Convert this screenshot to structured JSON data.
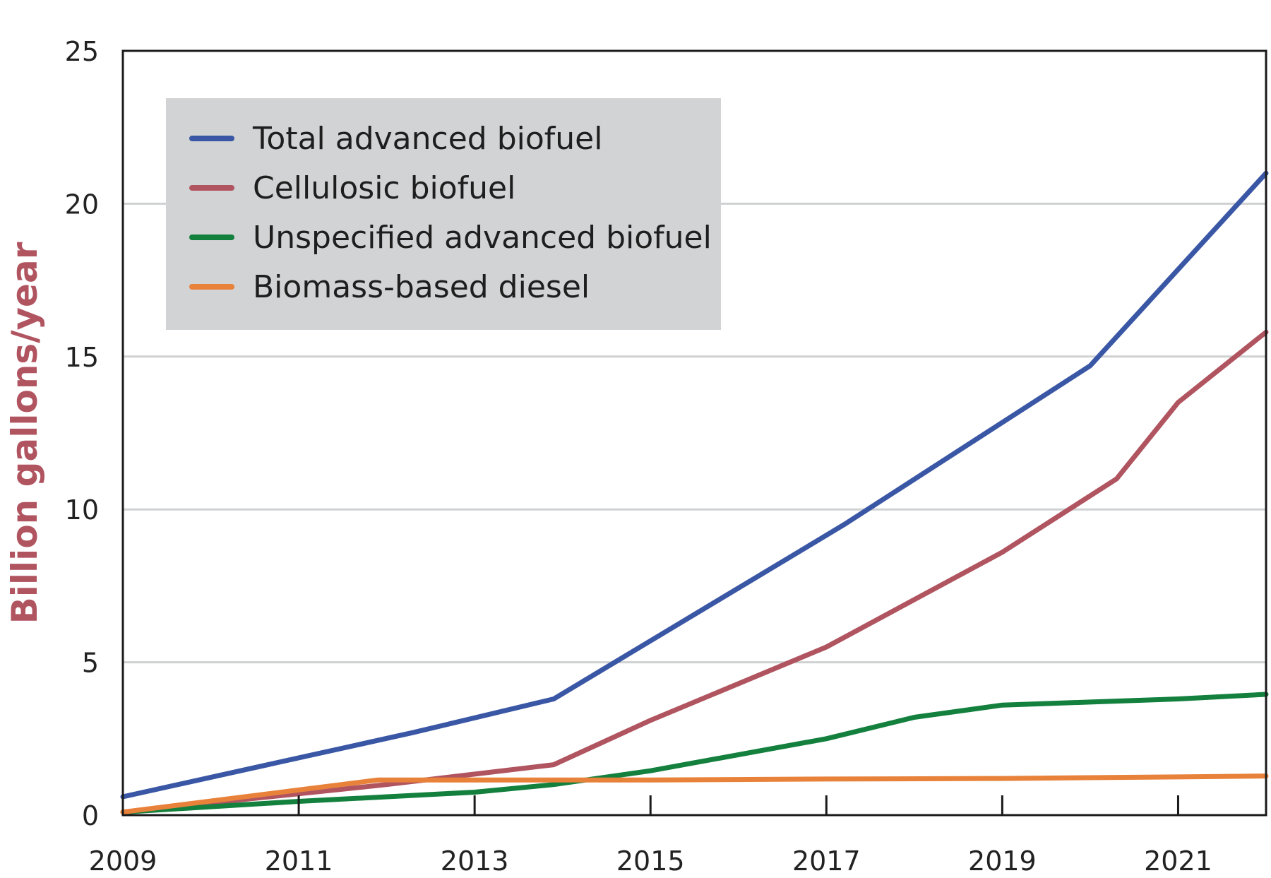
{
  "chart_data": {
    "type": "line",
    "title": "",
    "xlabel": "",
    "ylabel": "Billion gallons/year",
    "ylabel_color": "#b05460",
    "xlim": [
      2009,
      2022.0
    ],
    "ylim": [
      0,
      25
    ],
    "xticks": [
      2009,
      2011,
      2013,
      2015,
      2017,
      2019,
      2021
    ],
    "xtick_labels": [
      "2009",
      "2011",
      "2013",
      "2015",
      "2017",
      "2019",
      "2021"
    ],
    "yticks": [
      0,
      5,
      10,
      15,
      20,
      25
    ],
    "ytick_labels": [
      "0",
      "5",
      "10",
      "15",
      "20",
      "25"
    ],
    "grid": true,
    "legend_position": "top-left",
    "series": [
      {
        "name": "Total advanced biofuel",
        "color": "#3a57a5",
        "x": [
          2009,
          2012.3,
          2013.9,
          2017.2,
          2020.0,
          2022.0
        ],
        "y": [
          0.6,
          2.7,
          3.8,
          9.5,
          14.7,
          21.0
        ]
      },
      {
        "name": "Cellulosic biofuel",
        "color": "#b05460",
        "x": [
          2009,
          2012.0,
          2013.9,
          2015.0,
          2017.0,
          2019.0,
          2020.3,
          2021.0,
          2022.0
        ],
        "y": [
          0.1,
          1.0,
          1.65,
          3.1,
          5.5,
          8.6,
          11.0,
          13.5,
          15.8
        ]
      },
      {
        "name": "Unspecified advanced biofuel",
        "color": "#13803e",
        "x": [
          2009,
          2011.0,
          2013.0,
          2013.9,
          2015.0,
          2017.0,
          2018.0,
          2019.0,
          2020.0,
          2021.0,
          2022.0
        ],
        "y": [
          0.1,
          0.45,
          0.75,
          1.0,
          1.45,
          2.5,
          3.2,
          3.6,
          3.7,
          3.8,
          3.95
        ]
      },
      {
        "name": "Biomass-based diesel",
        "color": "#e8823a",
        "x": [
          2009,
          2011.9,
          2013.0,
          2015.0,
          2017.0,
          2019.0,
          2021.0,
          2022.0
        ],
        "y": [
          0.1,
          1.15,
          1.15,
          1.15,
          1.18,
          1.2,
          1.25,
          1.28
        ]
      }
    ]
  }
}
